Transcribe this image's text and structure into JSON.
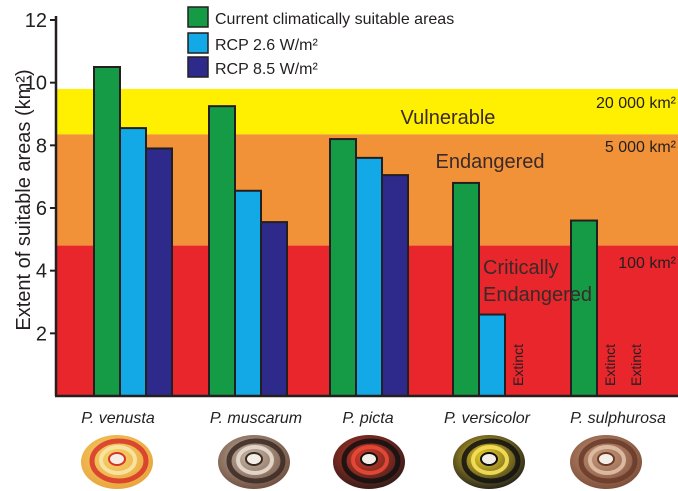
{
  "chart_data": {
    "type": "bar",
    "ylabel": "Extent of suitable areas (km²)",
    "ylim": [
      0,
      12
    ],
    "yticks": [
      2,
      4,
      6,
      8,
      10,
      12
    ],
    "categories": [
      "P. venusta",
      "P. muscarum",
      "P. picta",
      "P. versicolor",
      "P. sulphurosa"
    ],
    "series": [
      {
        "name": "Current climatically suitable areas",
        "color": "#159a45",
        "values": [
          10.5,
          9.25,
          8.2,
          6.8,
          5.6
        ]
      },
      {
        "name": "RCP 2.6 W/m²",
        "color": "#12a9e6",
        "values": [
          8.55,
          6.55,
          7.6,
          2.6,
          null
        ]
      },
      {
        "name": "RCP 8.5 W/m²",
        "color": "#2e2a8c",
        "values": [
          7.9,
          5.55,
          7.05,
          null,
          null
        ]
      }
    ],
    "bands": [
      {
        "label": "Vulnerable",
        "threshold": "20 000 km²",
        "from": 8.35,
        "to": 9.8,
        "color": "#ffef00"
      },
      {
        "label": "Endangered",
        "threshold": "5 000 km²",
        "from": 4.8,
        "to": 8.35,
        "color": "#f19138"
      },
      {
        "label": "Critically Endangered",
        "label_lines": [
          "Critically",
          "Endangered"
        ],
        "threshold": "100 km²",
        "from": 0,
        "to": 4.8,
        "color": "#e8262b"
      }
    ],
    "extinct_label": "Extinct",
    "legend_position": "top",
    "grid": false
  },
  "colors": {
    "axis": "#231f20",
    "text": "#231f20",
    "band_text": "#3a2a2a"
  }
}
